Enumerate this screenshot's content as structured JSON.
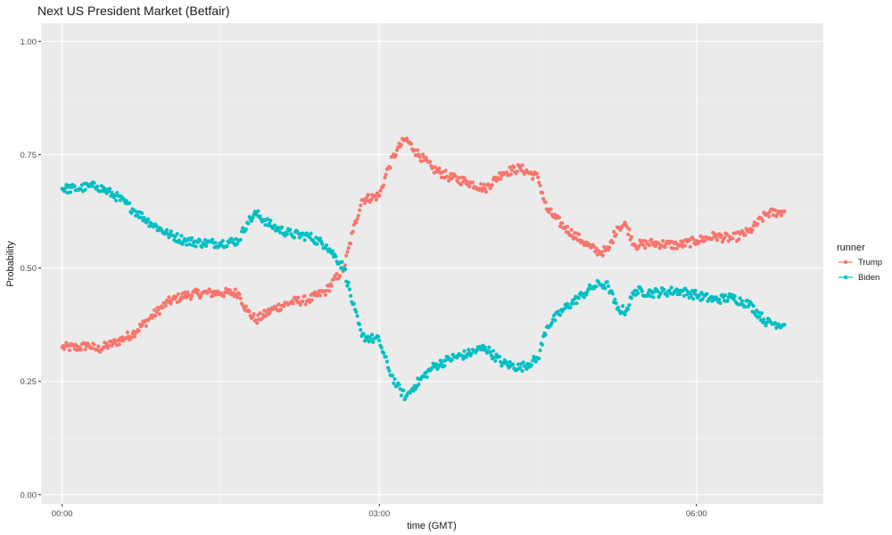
{
  "chart_data": {
    "type": "scatter",
    "title": "Next US President Market (Betfair)",
    "xlabel": "time (GMT)",
    "ylabel": "Probability",
    "xlim": [
      "-00:12",
      "07:12"
    ],
    "ylim": [
      -0.02,
      1.04
    ],
    "x_ticks": [
      "00:00",
      "03:00",
      "06:00"
    ],
    "y_ticks": [
      "0.00",
      "0.25",
      "0.50",
      "0.75",
      "1.00"
    ],
    "grid": true,
    "legend": {
      "title": "runner",
      "position": "right"
    },
    "series": [
      {
        "name": "Trump",
        "color": "#F8766D",
        "points": [
          [
            "00:00",
            0.325
          ],
          [
            "00:10",
            0.325
          ],
          [
            "00:15",
            0.33
          ],
          [
            "00:20",
            0.32
          ],
          [
            "00:30",
            0.335
          ],
          [
            "00:40",
            0.355
          ],
          [
            "00:50",
            0.39
          ],
          [
            "01:00",
            0.425
          ],
          [
            "01:10",
            0.44
          ],
          [
            "01:20",
            0.445
          ],
          [
            "01:30",
            0.445
          ],
          [
            "01:40",
            0.445
          ],
          [
            "01:45",
            0.405
          ],
          [
            "01:50",
            0.385
          ],
          [
            "02:00",
            0.41
          ],
          [
            "02:10",
            0.425
          ],
          [
            "02:20",
            0.43
          ],
          [
            "02:30",
            0.45
          ],
          [
            "02:40",
            0.5
          ],
          [
            "02:45",
            0.58
          ],
          [
            "02:50",
            0.65
          ],
          [
            "03:00",
            0.66
          ],
          [
            "03:05",
            0.72
          ],
          [
            "03:10",
            0.76
          ],
          [
            "03:15",
            0.785
          ],
          [
            "03:20",
            0.76
          ],
          [
            "03:30",
            0.72
          ],
          [
            "03:40",
            0.7
          ],
          [
            "03:50",
            0.69
          ],
          [
            "04:00",
            0.675
          ],
          [
            "04:10",
            0.71
          ],
          [
            "04:20",
            0.72
          ],
          [
            "04:30",
            0.7
          ],
          [
            "04:35",
            0.63
          ],
          [
            "04:45",
            0.59
          ],
          [
            "04:55",
            0.56
          ],
          [
            "05:00",
            0.545
          ],
          [
            "05:05",
            0.535
          ],
          [
            "05:10",
            0.54
          ],
          [
            "05:15",
            0.59
          ],
          [
            "05:20",
            0.595
          ],
          [
            "05:25",
            0.55
          ],
          [
            "05:35",
            0.555
          ],
          [
            "05:50",
            0.55
          ],
          [
            "06:00",
            0.56
          ],
          [
            "06:10",
            0.57
          ],
          [
            "06:20",
            0.565
          ],
          [
            "06:30",
            0.58
          ],
          [
            "06:40",
            0.62
          ],
          [
            "06:50",
            0.625
          ]
        ]
      },
      {
        "name": "Biden",
        "color": "#00BFC4",
        "points": [
          [
            "00:00",
            0.675
          ],
          [
            "00:10",
            0.675
          ],
          [
            "00:15",
            0.68
          ],
          [
            "00:20",
            0.68
          ],
          [
            "00:30",
            0.66
          ],
          [
            "00:40",
            0.63
          ],
          [
            "00:50",
            0.6
          ],
          [
            "01:00",
            0.575
          ],
          [
            "01:10",
            0.56
          ],
          [
            "01:20",
            0.555
          ],
          [
            "01:30",
            0.555
          ],
          [
            "01:40",
            0.56
          ],
          [
            "01:45",
            0.6
          ],
          [
            "01:50",
            0.62
          ],
          [
            "02:00",
            0.59
          ],
          [
            "02:10",
            0.575
          ],
          [
            "02:20",
            0.57
          ],
          [
            "02:30",
            0.55
          ],
          [
            "02:40",
            0.5
          ],
          [
            "02:45",
            0.42
          ],
          [
            "02:50",
            0.35
          ],
          [
            "03:00",
            0.34
          ],
          [
            "03:05",
            0.28
          ],
          [
            "03:10",
            0.24
          ],
          [
            "03:15",
            0.215
          ],
          [
            "03:20",
            0.24
          ],
          [
            "03:30",
            0.28
          ],
          [
            "03:40",
            0.3
          ],
          [
            "03:50",
            0.31
          ],
          [
            "04:00",
            0.325
          ],
          [
            "04:10",
            0.29
          ],
          [
            "04:20",
            0.28
          ],
          [
            "04:30",
            0.3
          ],
          [
            "04:35",
            0.37
          ],
          [
            "04:45",
            0.41
          ],
          [
            "04:55",
            0.44
          ],
          [
            "05:00",
            0.455
          ],
          [
            "05:05",
            0.465
          ],
          [
            "05:10",
            0.46
          ],
          [
            "05:15",
            0.41
          ],
          [
            "05:20",
            0.405
          ],
          [
            "05:25",
            0.45
          ],
          [
            "05:35",
            0.445
          ],
          [
            "05:50",
            0.45
          ],
          [
            "06:00",
            0.44
          ],
          [
            "06:10",
            0.43
          ],
          [
            "06:20",
            0.435
          ],
          [
            "06:30",
            0.42
          ],
          [
            "06:40",
            0.38
          ],
          [
            "06:50",
            0.375
          ]
        ]
      }
    ]
  }
}
